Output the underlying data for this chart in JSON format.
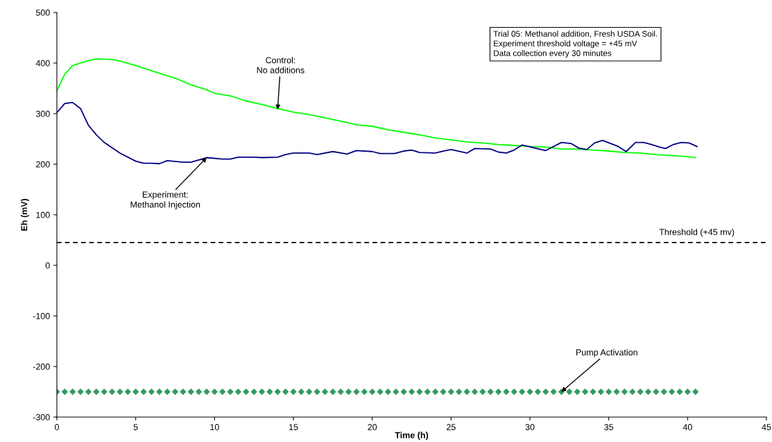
{
  "chart_data": {
    "type": "line",
    "xlabel": "Time (h)",
    "ylabel": "Eh (mV)",
    "xlim": [
      0,
      45
    ],
    "xticks": [
      0,
      5,
      10,
      15,
      20,
      25,
      30,
      35,
      40,
      45
    ],
    "ylim": [
      -300,
      500
    ],
    "yticks": [
      -300,
      -200,
      -100,
      0,
      100,
      200,
      300,
      400,
      500
    ],
    "grid": false,
    "legend": false,
    "series": [
      {
        "color": "#00ff00",
        "marker": "none",
        "x": [
          0,
          0.5,
          1,
          2,
          2.5,
          3.5,
          4,
          5,
          5.5,
          6.5,
          7.5,
          8.5,
          9.5,
          10,
          11,
          12,
          13,
          14,
          15,
          16,
          18,
          19,
          20,
          21,
          22,
          23,
          24,
          25,
          26,
          27,
          28,
          29,
          30,
          31,
          32,
          33,
          34,
          35,
          36,
          37,
          38,
          39,
          40,
          40.5
        ],
        "values": [
          345,
          378,
          395,
          405,
          408,
          407,
          404,
          395,
          390,
          380,
          370,
          357,
          347,
          340,
          335,
          325,
          318,
          310,
          303,
          298,
          285,
          278,
          275,
          268,
          263,
          258,
          252,
          248,
          244,
          242,
          239,
          237,
          235,
          234,
          230,
          230,
          228,
          226,
          223,
          222,
          219,
          217,
          215,
          213
        ]
      },
      {
        "color": "#000080",
        "marker": "none",
        "x": [
          0,
          0.5,
          1,
          1.5,
          2,
          2.5,
          3,
          4,
          5,
          5.5,
          6,
          6.5,
          7,
          8,
          8.5,
          9.5,
          10.5,
          11,
          11.5,
          12.5,
          13,
          14,
          14.5,
          15,
          16,
          16.5,
          17.5,
          18.4,
          19,
          20,
          20.5,
          21.4,
          22,
          22.5,
          23,
          24,
          24.5,
          25,
          26,
          26.5,
          27.5,
          28,
          28.5,
          29,
          29.5,
          31,
          32,
          32.6,
          33.1,
          33.6,
          34.1,
          34.6,
          35.6,
          36.1,
          36.7,
          37.2,
          37.6,
          38.2,
          38.6,
          39.1,
          39.6,
          40.1,
          40.6
        ],
        "values": [
          302,
          320,
          322,
          310,
          277,
          258,
          243,
          222,
          206,
          202,
          202,
          201,
          207,
          204,
          204,
          213,
          210,
          210,
          214,
          214,
          213,
          214,
          219,
          222,
          222,
          219,
          225,
          220,
          227,
          225,
          221,
          221,
          226,
          228,
          223,
          222,
          226,
          229,
          222,
          231,
          230,
          224,
          222,
          228,
          238,
          227,
          243,
          241,
          232,
          229,
          242,
          247,
          235,
          225,
          243,
          243,
          240,
          234,
          231,
          239,
          243,
          242,
          235
        ]
      },
      {
        "type": "scatter",
        "color": "#339966",
        "marker": "diamond",
        "x": [
          0,
          0.5,
          1,
          1.5,
          2,
          2.5,
          3,
          3.5,
          4,
          4.5,
          5,
          5.5,
          6,
          6.5,
          7,
          7.5,
          8,
          8.5,
          9,
          9.5,
          10,
          10.5,
          11,
          11.5,
          12,
          12.5,
          13,
          13.5,
          14,
          14.5,
          15,
          15.5,
          16,
          16.5,
          17,
          17.5,
          18,
          18.5,
          19,
          19.5,
          20,
          20.5,
          21,
          21.5,
          22,
          22.5,
          23,
          23.5,
          24,
          24.5,
          25,
          25.5,
          26,
          26.5,
          27,
          27.5,
          28,
          28.5,
          29,
          29.5,
          30,
          30.5,
          31,
          31.5,
          32,
          32.5,
          33,
          33.5,
          34,
          34.5,
          35,
          35.5,
          36,
          36.5,
          37,
          37.5,
          38,
          38.5,
          39,
          39.5,
          40,
          40.5
        ],
        "values": [
          -250,
          -250,
          -250,
          -250,
          -250,
          -250,
          -250,
          -250,
          -250,
          -250,
          -250,
          -250,
          -250,
          -250,
          -250,
          -250,
          -250,
          -250,
          -250,
          -250,
          -250,
          -250,
          -250,
          -250,
          -250,
          -250,
          -250,
          -250,
          -250,
          -250,
          -250,
          -250,
          -250,
          -250,
          -250,
          -250,
          -250,
          -250,
          -250,
          -250,
          -250,
          -250,
          -250,
          -250,
          -250,
          -250,
          -250,
          -250,
          -250,
          -250,
          -250,
          -250,
          -250,
          -250,
          -250,
          -250,
          -250,
          -250,
          -250,
          -250,
          -250,
          -250,
          -250,
          -250,
          -250,
          -250,
          -250,
          -250,
          -250,
          -250,
          -250,
          -250,
          -250,
          -250,
          -250,
          -250,
          -250,
          -250,
          -250,
          -250,
          -250,
          -250
        ]
      }
    ],
    "ref_lines": [
      {
        "axis": "y",
        "value": 45,
        "label": "Threshold (+45 mv)",
        "color": "#000000",
        "line_style": "dashed"
      }
    ],
    "annotations": [
      {
        "text": "Control:\nNo additions",
        "x": 14,
        "y": 308
      },
      {
        "text": "Experiment:\nMethanol Injection",
        "x": 9.5,
        "y": 213
      },
      {
        "text": "Pump Activation",
        "x": 32,
        "y": -250
      },
      "Trial 05: Methanol addition, Fresh USDA Soil.\nExperiment threshold voltage = +45 mV\nData collection every 30 minutes"
    ]
  }
}
